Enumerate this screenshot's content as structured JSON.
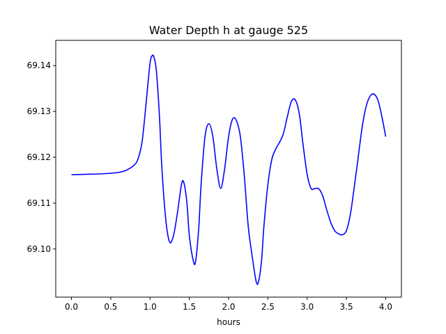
{
  "chart_data": {
    "type": "line",
    "title": "Water Depth h at gauge 525",
    "xlabel": "hours",
    "ylabel": "",
    "xlim": [
      -0.2,
      4.2
    ],
    "ylim": [
      69.0895,
      69.1455
    ],
    "xticks": [
      0.0,
      0.5,
      1.0,
      1.5,
      2.0,
      2.5,
      3.0,
      3.5,
      4.0
    ],
    "xtick_labels": [
      "0.0",
      "0.5",
      "1.0",
      "1.5",
      "2.0",
      "2.5",
      "3.0",
      "3.5",
      "4.0"
    ],
    "yticks": [
      69.1,
      69.11,
      69.12,
      69.13,
      69.14
    ],
    "ytick_labels": [
      "69.10",
      "69.11",
      "69.12",
      "69.13",
      "69.14"
    ],
    "grid": false,
    "series": [
      {
        "color": "#0000ff",
        "x": [
          0.0,
          0.2,
          0.4,
          0.6,
          0.7,
          0.8,
          0.85,
          0.9,
          0.95,
          1.0,
          1.03,
          1.05,
          1.08,
          1.12,
          1.15,
          1.2,
          1.25,
          1.3,
          1.35,
          1.4,
          1.43,
          1.47,
          1.5,
          1.55,
          1.58,
          1.62,
          1.65,
          1.7,
          1.75,
          1.8,
          1.85,
          1.9,
          1.95,
          2.0,
          2.05,
          2.1,
          2.15,
          2.2,
          2.25,
          2.3,
          2.35,
          2.38,
          2.42,
          2.45,
          2.5,
          2.55,
          2.6,
          2.65,
          2.7,
          2.75,
          2.8,
          2.85,
          2.9,
          2.95,
          3.0,
          3.05,
          3.1,
          3.15,
          3.2,
          3.25,
          3.3,
          3.35,
          3.4,
          3.45,
          3.5,
          3.55,
          3.6,
          3.65,
          3.7,
          3.75,
          3.8,
          3.85,
          3.9,
          3.95,
          4.0
        ],
        "y": [
          69.1162,
          69.1163,
          69.1164,
          69.1167,
          69.1172,
          69.1183,
          69.1198,
          69.1235,
          69.1318,
          69.1405,
          69.1422,
          69.1418,
          69.139,
          69.129,
          69.118,
          69.1065,
          69.1015,
          69.103,
          69.108,
          69.114,
          69.1145,
          69.11,
          69.103,
          69.0975,
          69.0973,
          69.1045,
          69.114,
          69.1245,
          69.1273,
          69.1245,
          69.1175,
          69.1132,
          69.1175,
          69.1245,
          69.1283,
          69.128,
          69.1245,
          69.116,
          69.105,
          69.0985,
          69.093,
          69.0928,
          69.0975,
          69.105,
          69.114,
          69.1195,
          69.1218,
          69.1233,
          69.1253,
          69.129,
          69.1322,
          69.1325,
          69.1295,
          69.1225,
          69.1163,
          69.1132,
          69.1132,
          69.1131,
          69.1115,
          69.1085,
          69.1058,
          69.104,
          69.1033,
          69.1031,
          69.104,
          69.1075,
          69.1135,
          69.12,
          69.1265,
          69.131,
          69.1333,
          69.1338,
          69.1325,
          69.129,
          69.1245
        ]
      }
    ]
  }
}
